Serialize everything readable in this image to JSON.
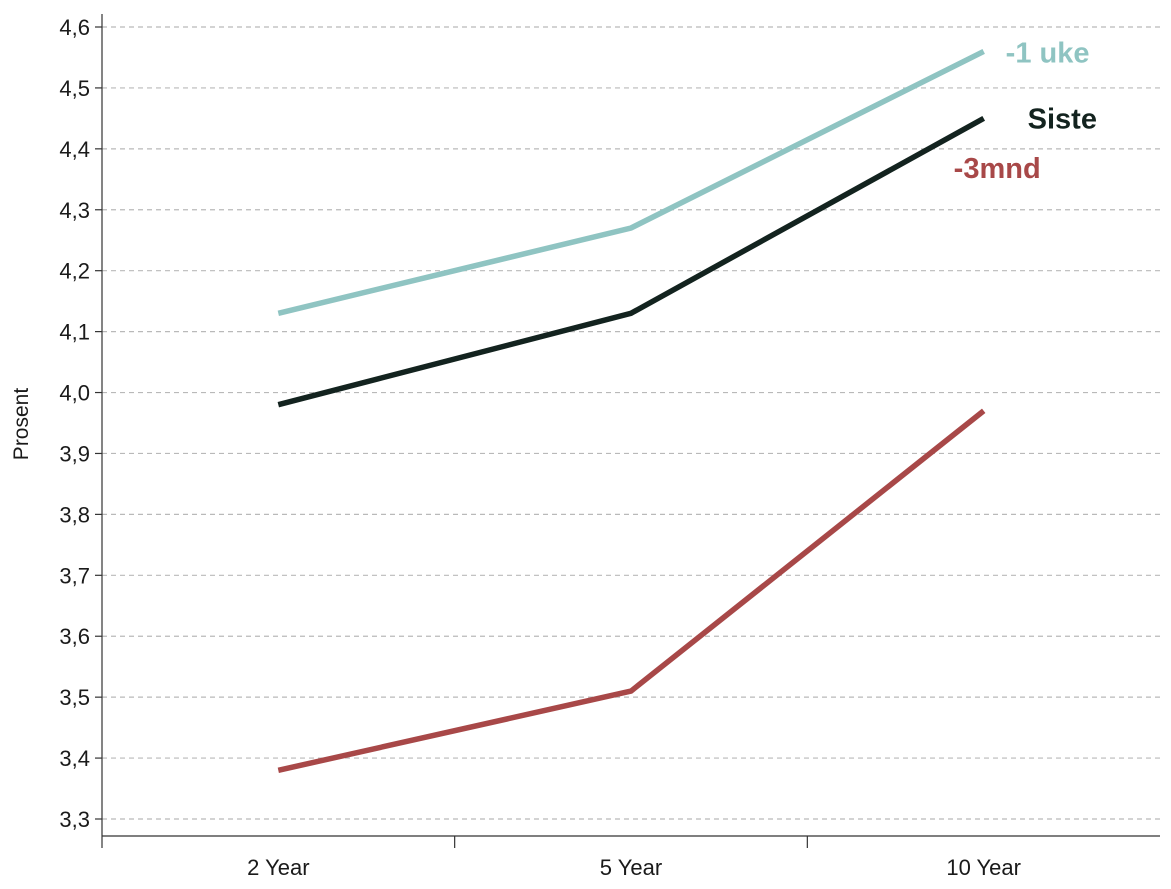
{
  "chart_data": {
    "type": "line",
    "title": "",
    "xlabel": "",
    "ylabel": "Prosent",
    "categories": [
      "2 Year",
      "5 Year",
      "10 Year"
    ],
    "ylim": [
      3.3,
      4.6
    ],
    "yticks": [
      "3,3",
      "3,4",
      "3,5",
      "3,6",
      "3,7",
      "3,8",
      "3,9",
      "4,0",
      "4,1",
      "4,2",
      "4,3",
      "4,4",
      "4,5",
      "4,6"
    ],
    "grid": true,
    "grid_style": "dashed horizontal",
    "legend": "direct labels at line ends",
    "series": [
      {
        "name": "-1 uke",
        "values": [
          4.13,
          4.27,
          4.56
        ],
        "color": "#8fc4c2"
      },
      {
        "name": "Siste",
        "values": [
          3.98,
          4.13,
          4.45
        ],
        "color": "#13231f"
      },
      {
        "name": "-3mnd",
        "values": [
          3.38,
          3.51,
          3.97
        ],
        "color": "#a84848"
      }
    ]
  }
}
